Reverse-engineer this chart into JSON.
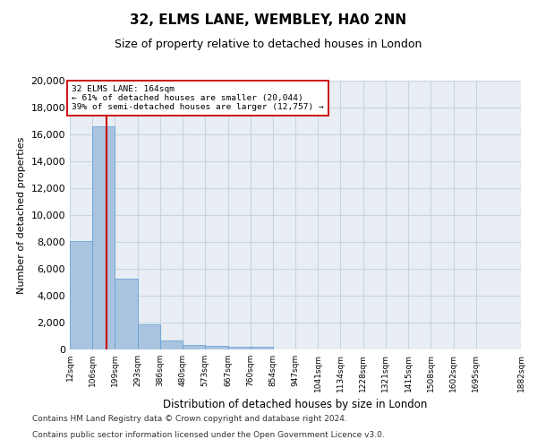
{
  "title1": "32, ELMS LANE, WEMBLEY, HA0 2NN",
  "title2": "Size of property relative to detached houses in London",
  "xlabel": "Distribution of detached houses by size in London",
  "ylabel": "Number of detached properties",
  "property_size": 164,
  "annotation_line1": "32 ELMS LANE: 164sqm",
  "annotation_line2": "← 61% of detached houses are smaller (20,044)",
  "annotation_line3": "39% of semi-detached houses are larger (12,757) →",
  "bar_values": [
    8100,
    16600,
    5300,
    1850,
    650,
    330,
    270,
    200,
    170,
    0,
    0,
    0,
    0,
    0,
    0,
    0,
    0,
    0,
    0
  ],
  "bin_edges": [
    12,
    106,
    199,
    293,
    386,
    480,
    573,
    667,
    760,
    854,
    947,
    1041,
    1134,
    1228,
    1321,
    1415,
    1508,
    1602,
    1695,
    1882
  ],
  "tick_labels": [
    "12sqm",
    "106sqm",
    "199sqm",
    "293sqm",
    "386sqm",
    "480sqm",
    "573sqm",
    "667sqm",
    "760sqm",
    "854sqm",
    "947sqm",
    "1041sqm",
    "1134sqm",
    "1228sqm",
    "1321sqm",
    "1415sqm",
    "1508sqm",
    "1602sqm",
    "1695sqm",
    "1882sqm"
  ],
  "bar_color": "#aac4e0",
  "bar_edge_color": "#5b9bd5",
  "line_color": "#cc0000",
  "annotation_box_color": "#ffffff",
  "annotation_box_edge": "#cc0000",
  "grid_color": "#c8d4e0",
  "ylim": [
    0,
    20000
  ],
  "yticks": [
    0,
    2000,
    4000,
    6000,
    8000,
    10000,
    12000,
    14000,
    16000,
    18000,
    20000
  ],
  "footer1": "Contains HM Land Registry data © Crown copyright and database right 2024.",
  "footer2": "Contains public sector information licensed under the Open Government Licence v3.0.",
  "bg_color": "#e8eef4"
}
